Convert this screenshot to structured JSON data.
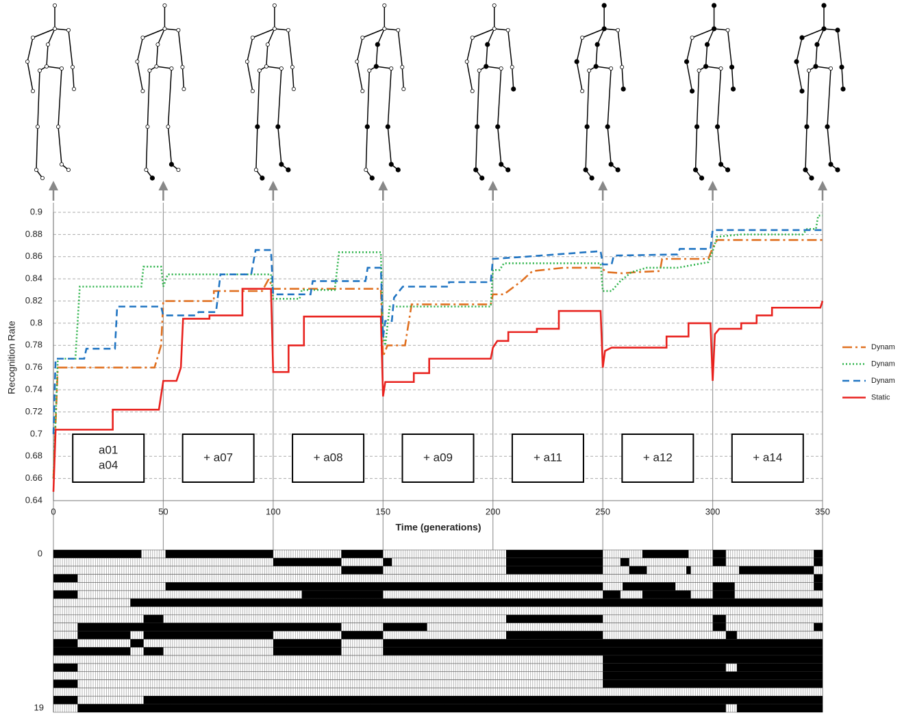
{
  "chart_data": {
    "type": "line",
    "x_label": "Time (generations)",
    "y_label": "Recognition Rate",
    "xlim": [
      0,
      350
    ],
    "xticks": [
      0,
      50,
      100,
      150,
      200,
      250,
      300,
      350
    ],
    "ylim": [
      0.64,
      0.9
    ],
    "yticks": [
      0.64,
      0.66,
      0.68,
      0.7,
      0.72,
      0.74,
      0.76,
      0.78,
      0.8,
      0.82,
      0.84,
      0.86,
      0.88,
      0.9
    ],
    "grid": true,
    "legend": "right",
    "annotations": [
      {
        "lines": [
          "a01",
          "a04"
        ]
      },
      {
        "lines": [
          "+ a07"
        ]
      },
      {
        "lines": [
          "+ a08"
        ]
      },
      {
        "lines": [
          "+ a09"
        ]
      },
      {
        "lines": [
          "+ a11"
        ]
      },
      {
        "lines": [
          "+ a12"
        ]
      },
      {
        "lines": [
          "+ a14"
        ]
      }
    ],
    "series": [
      {
        "name": "Dynam",
        "color": "#e07020",
        "dash": "dash-dot",
        "x": [
          0,
          2,
          46,
          49,
          50,
          73,
          73,
          95,
          98,
          100,
          149,
          150,
          152,
          160,
          163,
          199,
          200,
          205,
          213,
          218,
          232,
          249,
          252,
          259,
          265,
          276,
          277,
          298,
          300,
          302,
          350
        ],
        "values": [
          0.66,
          0.76,
          0.76,
          0.78,
          0.82,
          0.82,
          0.829,
          0.829,
          0.84,
          0.831,
          0.831,
          0.77,
          0.78,
          0.78,
          0.817,
          0.817,
          0.826,
          0.826,
          0.838,
          0.847,
          0.85,
          0.85,
          0.846,
          0.845,
          0.846,
          0.847,
          0.858,
          0.858,
          0.868,
          0.875,
          0.875
        ]
      },
      {
        "name": "Dynam",
        "color": "#2db34a",
        "dash": "dotted",
        "x": [
          0,
          2,
          10,
          12,
          40,
          41,
          49,
          50,
          52,
          99,
          100,
          112,
          113,
          128,
          130,
          149,
          150,
          151,
          153,
          199,
          200,
          203,
          205,
          249,
          250,
          254,
          258,
          263,
          270,
          284,
          298,
          300,
          302,
          313,
          341,
          343,
          347,
          348,
          350
        ],
        "values": [
          0.66,
          0.768,
          0.768,
          0.833,
          0.833,
          0.851,
          0.851,
          0.833,
          0.844,
          0.844,
          0.822,
          0.822,
          0.83,
          0.83,
          0.864,
          0.864,
          0.79,
          0.78,
          0.815,
          0.815,
          0.848,
          0.848,
          0.854,
          0.854,
          0.829,
          0.829,
          0.838,
          0.846,
          0.85,
          0.85,
          0.855,
          0.865,
          0.878,
          0.88,
          0.88,
          0.885,
          0.885,
          0.897,
          0.897
        ]
      },
      {
        "name": "Dynam",
        "color": "#1f74c2",
        "dash": "dashed",
        "x": [
          0,
          1,
          14,
          15,
          28,
          29,
          49,
          50,
          65,
          66,
          74,
          76,
          90,
          92,
          99,
          100,
          117,
          118,
          142,
          143,
          149,
          150,
          151,
          154,
          155,
          159,
          180,
          180,
          199,
          200,
          215,
          249,
          250,
          254,
          255,
          284,
          285,
          299,
          300,
          350
        ],
        "values": [
          0.7,
          0.768,
          0.768,
          0.777,
          0.777,
          0.815,
          0.815,
          0.807,
          0.807,
          0.81,
          0.81,
          0.844,
          0.844,
          0.866,
          0.866,
          0.826,
          0.826,
          0.838,
          0.838,
          0.85,
          0.85,
          0.787,
          0.802,
          0.802,
          0.823,
          0.833,
          0.833,
          0.837,
          0.837,
          0.858,
          0.86,
          0.865,
          0.853,
          0.853,
          0.861,
          0.862,
          0.867,
          0.867,
          0.884,
          0.884
        ]
      },
      {
        "name": "Static",
        "color": "#e8221e",
        "dash": "solid",
        "x": [
          0,
          1,
          27,
          27,
          48,
          50,
          56,
          58,
          59,
          71,
          71,
          86,
          86,
          99,
          100,
          107,
          107,
          114,
          114,
          149,
          150,
          151,
          164,
          164,
          171,
          171,
          199,
          200,
          202,
          207,
          207,
          220,
          220,
          230,
          230,
          249,
          250,
          251,
          254,
          279,
          279,
          289,
          289,
          299,
          300,
          301,
          303,
          313,
          313,
          320,
          320,
          327,
          327,
          349,
          350
        ],
        "values": [
          0.648,
          0.704,
          0.704,
          0.722,
          0.722,
          0.748,
          0.748,
          0.76,
          0.804,
          0.804,
          0.807,
          0.807,
          0.831,
          0.831,
          0.756,
          0.756,
          0.78,
          0.78,
          0.806,
          0.806,
          0.734,
          0.747,
          0.747,
          0.755,
          0.755,
          0.768,
          0.768,
          0.778,
          0.784,
          0.784,
          0.792,
          0.792,
          0.795,
          0.795,
          0.811,
          0.811,
          0.76,
          0.775,
          0.778,
          0.778,
          0.788,
          0.788,
          0.8,
          0.8,
          0.748,
          0.79,
          0.795,
          0.795,
          0.8,
          0.8,
          0.807,
          0.807,
          0.814,
          0.814,
          0.82
        ]
      }
    ]
  },
  "matrix": {
    "first_row_label": "0",
    "last_row_label": "19",
    "rows": [
      [
        [
          0,
          40
        ],
        [
          51,
          100
        ],
        [
          131,
          150
        ],
        [
          206,
          250
        ],
        [
          268,
          289
        ],
        [
          300,
          306
        ],
        [
          346,
          350
        ]
      ],
      [
        [
          100,
          131
        ],
        [
          150,
          154
        ],
        [
          206,
          250
        ],
        [
          258,
          262
        ],
        [
          300,
          306
        ],
        [
          346,
          350
        ]
      ],
      [
        [
          131,
          150
        ],
        [
          206,
          250
        ],
        [
          262,
          270
        ],
        [
          288,
          290
        ],
        [
          312,
          346
        ]
      ],
      [
        [
          0,
          11
        ],
        [
          346,
          350
        ]
      ],
      [
        [
          51,
          250
        ],
        [
          259,
          283
        ],
        [
          300,
          310
        ],
        [
          346,
          350
        ]
      ],
      [
        [
          0,
          11
        ],
        [
          113,
          150
        ],
        [
          250,
          258
        ],
        [
          268,
          290
        ],
        [
          300,
          310
        ]
      ],
      [
        [
          35,
          350
        ]
      ],
      [],
      [
        [
          41,
          50
        ],
        [
          206,
          250
        ],
        [
          300,
          306
        ]
      ],
      [
        [
          11,
          131
        ],
        [
          150,
          170
        ],
        [
          300,
          306
        ],
        [
          346,
          350
        ]
      ],
      [
        [
          11,
          35
        ],
        [
          41,
          100
        ],
        [
          131,
          150
        ],
        [
          206,
          250
        ],
        [
          306,
          311
        ]
      ],
      [
        [
          0,
          11
        ],
        [
          35,
          41
        ],
        [
          100,
          131
        ],
        [
          150,
          350
        ]
      ],
      [
        [
          0,
          35
        ],
        [
          41,
          50
        ],
        [
          100,
          131
        ],
        [
          150,
          350
        ]
      ],
      [
        [
          250,
          350
        ]
      ],
      [
        [
          0,
          11
        ],
        [
          250,
          306
        ],
        [
          311,
          350
        ]
      ],
      [
        [
          250,
          350
        ]
      ],
      [
        [
          0,
          11
        ],
        [
          250,
          350
        ]
      ],
      [],
      [
        [
          0,
          11
        ],
        [
          41,
          350
        ]
      ],
      [
        [
          11,
          306
        ],
        [
          311,
          350
        ]
      ]
    ]
  }
}
